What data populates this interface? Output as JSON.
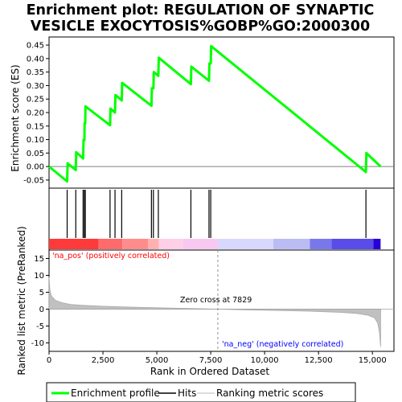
{
  "chart_data": {
    "type": "line",
    "title_line1": "Enrichment plot: REGULATION OF SYNAPTIC",
    "title_line2": "VESICLE EXOCYTOSIS%GOBP%GO:2000300",
    "xlabel": "Rank in Ordered Dataset",
    "es_panel": {
      "ylabel": "Enrichment score (ES)",
      "ylim": [
        -0.08,
        0.48
      ],
      "yticks": [
        -0.05,
        0.0,
        0.05,
        0.1,
        0.15,
        0.2,
        0.25,
        0.3,
        0.35,
        0.4,
        0.45
      ],
      "ytick_labels": [
        "-0.05",
        "0.00",
        "0.05",
        "0.10",
        "0.15",
        "0.20",
        "0.25",
        "0.30",
        "0.35",
        "0.40",
        "0.45"
      ],
      "series": [
        {
          "label": "Enrichment profile",
          "color": "#00ff00",
          "points": [
            [
              0,
              0.0
            ],
            [
              840,
              -0.055
            ],
            [
              860,
              0.012
            ],
            [
              1240,
              -0.013
            ],
            [
              1260,
              0.053
            ],
            [
              1580,
              0.03
            ],
            [
              1600,
              0.098
            ],
            [
              1640,
              0.098
            ],
            [
              1650,
              0.16
            ],
            [
              1680,
              0.16
            ],
            [
              1690,
              0.223
            ],
            [
              2830,
              0.153
            ],
            [
              2850,
              0.215
            ],
            [
              3060,
              0.2
            ],
            [
              3080,
              0.265
            ],
            [
              3370,
              0.245
            ],
            [
              3390,
              0.31
            ],
            [
              4750,
              0.225
            ],
            [
              4770,
              0.29
            ],
            [
              4840,
              0.29
            ],
            [
              4860,
              0.35
            ],
            [
              5070,
              0.336
            ],
            [
              5090,
              0.403
            ],
            [
              6580,
              0.305
            ],
            [
              6600,
              0.37
            ],
            [
              7420,
              0.318
            ],
            [
              7440,
              0.382
            ],
            [
              7500,
              0.382
            ],
            [
              7520,
              0.446
            ],
            [
              14700,
              -0.02
            ],
            [
              14720,
              0.05
            ],
            [
              15380,
              0.0
            ]
          ]
        }
      ]
    },
    "hits": [
      840,
      1240,
      1580,
      1640,
      1680,
      2830,
      3060,
      3370,
      4750,
      4840,
      5070,
      6580,
      7420,
      7500,
      14700
    ],
    "heat_bar": {
      "segments": [
        {
          "end": 2300,
          "color": "#ff3a3a"
        },
        {
          "end": 3400,
          "color": "#ff6a6a"
        },
        {
          "end": 4600,
          "color": "#ff8c8c"
        },
        {
          "end": 5100,
          "color": "#ffb0b0"
        },
        {
          "end": 6200,
          "color": "#ffcfe8"
        },
        {
          "end": 7829,
          "color": "#f9c8f0"
        },
        {
          "end": 10400,
          "color": "#d8d8ff"
        },
        {
          "end": 12100,
          "color": "#bcbcf4"
        },
        {
          "end": 13100,
          "color": "#7878ec"
        },
        {
          "end": 15050,
          "color": "#5a4ce8"
        },
        {
          "end": 15380,
          "color": "#2600d8"
        }
      ]
    },
    "metric_panel": {
      "ylabel": "Ranked list metric (PreRanked)",
      "ylim": [
        -12.5,
        17.5
      ],
      "yticks": [
        -10,
        -5,
        0,
        5,
        10,
        15
      ],
      "ytick_labels": [
        "-10",
        "-5",
        "0",
        "5",
        "10",
        "15"
      ],
      "curve": [
        [
          0,
          9.5
        ],
        [
          40,
          5.5
        ],
        [
          120,
          3.8
        ],
        [
          300,
          2.6
        ],
        [
          600,
          1.9
        ],
        [
          1000,
          1.4
        ],
        [
          1500,
          1.15
        ],
        [
          2500,
          0.85
        ],
        [
          4000,
          0.55
        ],
        [
          6000,
          0.25
        ],
        [
          7829,
          0.0
        ],
        [
          9000,
          -0.2
        ],
        [
          10500,
          -0.38
        ],
        [
          12000,
          -0.6
        ],
        [
          13500,
          -0.95
        ],
        [
          14300,
          -1.3
        ],
        [
          14800,
          -1.8
        ],
        [
          15100,
          -2.6
        ],
        [
          15250,
          -4.2
        ],
        [
          15330,
          -7.0
        ],
        [
          15380,
          -11.2
        ]
      ],
      "label_pos": "'na_pos' (positively correlated)",
      "label_neg": "'na_neg' (negatively correlated)",
      "zero_cross_label": "Zero cross at 7829",
      "zero_cross": 7829,
      "pos_color": "#ff0000",
      "neg_color": "#0000ff"
    },
    "xlim": [
      0,
      16000
    ],
    "xticks": [
      0,
      2500,
      5000,
      7500,
      10000,
      12500,
      15000
    ],
    "xtick_labels": [
      "0",
      "2,500",
      "5,000",
      "7,500",
      "10,000",
      "12,500",
      "15,000"
    ],
    "legend": [
      {
        "label": "Enrichment profile",
        "color": "#00ff00"
      },
      {
        "label": "Hits",
        "color": "#000000"
      },
      {
        "label": "Ranking metric scores",
        "color": "#c0c0c0"
      }
    ]
  }
}
